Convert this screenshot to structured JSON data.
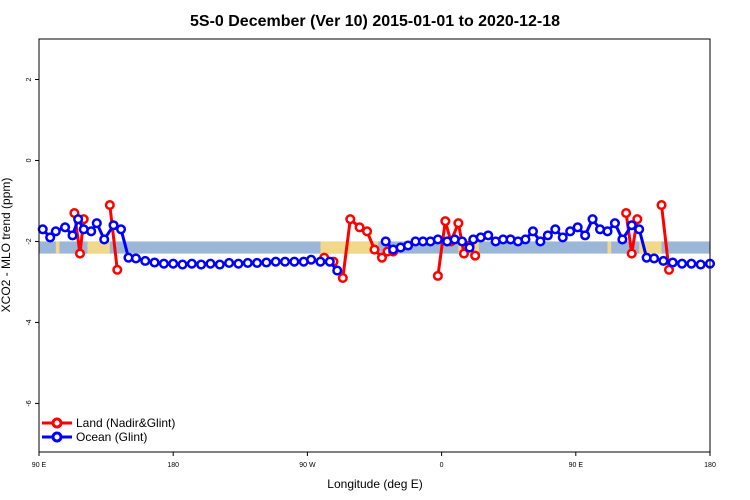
{
  "chart_data": {
    "type": "line",
    "title": "5S-0 December (Ver 10)   2015-01-01 to 2020-12-18",
    "xlabel": "Longitude (deg E)",
    "ylabel": "XCO2 - MLO trend (ppm)",
    "xlim": [
      90,
      450
    ],
    "ylim": [
      -7.2,
      3.0
    ],
    "x_ticks": [
      {
        "value": 90,
        "label": "90 E"
      },
      {
        "value": 180,
        "label": "180"
      },
      {
        "value": 270,
        "label": "90 W"
      },
      {
        "value": 360,
        "label": "0"
      },
      {
        "value": 450,
        "label": "90 E"
      },
      {
        "value": 540,
        "label": "180"
      }
    ],
    "x_tick_display_positions": [
      90,
      162,
      234,
      306,
      378,
      450
    ],
    "y_ticks": [
      2,
      0,
      -2,
      -4,
      -6
    ],
    "reference_band": {
      "y_low": -2.3,
      "y_high": -2.0,
      "color": "#9cb6d8",
      "land_color": "#f2d88a"
    },
    "land_band_x": [
      [
        99,
        101
      ],
      [
        116,
        128
      ],
      [
        241,
        272
      ],
      [
        315,
        326
      ],
      [
        395,
        397
      ],
      [
        412,
        424
      ]
    ],
    "series": [
      {
        "name": "Land (Nadir&Glint)",
        "color": "#ff0000",
        "points": [
          [
            109,
            -1.3
          ],
          [
            112,
            -2.3
          ],
          [
            114,
            -1.45
          ],
          [
            128,
            -1.1
          ],
          [
            132,
            -2.7
          ],
          [
            243,
            -2.4
          ],
          [
            248,
            -2.5
          ],
          [
            253,
            -2.9
          ],
          [
            257,
            -1.45
          ],
          [
            262,
            -1.65
          ],
          [
            266,
            -1.75
          ],
          [
            270,
            -2.2
          ],
          [
            274,
            -2.4
          ],
          [
            277,
            -2.25
          ],
          [
            280,
            -2.25
          ],
          [
            304,
            -2.85
          ],
          [
            308,
            -1.5
          ],
          [
            311,
            -2.0
          ],
          [
            315,
            -1.55
          ],
          [
            318,
            -2.3
          ],
          [
            321,
            -2.1
          ],
          [
            324,
            -2.35
          ],
          [
            405,
            -1.3
          ],
          [
            408,
            -2.3
          ],
          [
            411,
            -1.45
          ],
          [
            424,
            -1.1
          ],
          [
            428,
            -2.7
          ]
        ]
      },
      {
        "name": "Ocean (Glint)",
        "color": "#0000ff",
        "points": [
          [
            92,
            -1.7
          ],
          [
            96,
            -1.9
          ],
          [
            99,
            -1.75
          ],
          [
            104,
            -1.65
          ],
          [
            108,
            -1.85
          ],
          [
            111,
            -1.45
          ],
          [
            114,
            -1.7
          ],
          [
            118,
            -1.75
          ],
          [
            121,
            -1.55
          ],
          [
            125,
            -1.95
          ],
          [
            130,
            -1.6
          ],
          [
            134,
            -1.7
          ],
          [
            138,
            -2.4
          ],
          [
            142,
            -2.42
          ],
          [
            147,
            -2.48
          ],
          [
            152,
            -2.52
          ],
          [
            157,
            -2.55
          ],
          [
            162,
            -2.55
          ],
          [
            167,
            -2.57
          ],
          [
            172,
            -2.55
          ],
          [
            177,
            -2.57
          ],
          [
            182,
            -2.55
          ],
          [
            187,
            -2.57
          ],
          [
            192,
            -2.53
          ],
          [
            197,
            -2.55
          ],
          [
            202,
            -2.53
          ],
          [
            207,
            -2.53
          ],
          [
            212,
            -2.52
          ],
          [
            217,
            -2.5
          ],
          [
            222,
            -2.5
          ],
          [
            227,
            -2.5
          ],
          [
            232,
            -2.5
          ],
          [
            236,
            -2.45
          ],
          [
            241,
            -2.5
          ],
          [
            246,
            -2.5
          ],
          [
            250,
            -2.72
          ],
          [
            276,
            -2.0
          ],
          [
            280,
            -2.2
          ],
          [
            284,
            -2.15
          ],
          [
            288,
            -2.1
          ],
          [
            292,
            -2.0
          ],
          [
            296,
            -2.0
          ],
          [
            300,
            -2.0
          ],
          [
            304,
            -1.95
          ],
          [
            309,
            -2.0
          ],
          [
            313,
            -1.95
          ],
          [
            317,
            -2.0
          ],
          [
            321,
            -2.15
          ],
          [
            323,
            -1.95
          ],
          [
            327,
            -1.9
          ],
          [
            331,
            -1.85
          ],
          [
            335,
            -2.0
          ],
          [
            339,
            -1.95
          ],
          [
            343,
            -1.95
          ],
          [
            347,
            -2.0
          ],
          [
            351,
            -1.95
          ],
          [
            355,
            -1.75
          ],
          [
            359,
            -2.0
          ],
          [
            363,
            -1.85
          ],
          [
            367,
            -1.7
          ],
          [
            371,
            -1.9
          ],
          [
            375,
            -1.75
          ],
          [
            379,
            -1.65
          ],
          [
            383,
            -1.85
          ],
          [
            387,
            -1.45
          ],
          [
            391,
            -1.7
          ],
          [
            395,
            -1.75
          ],
          [
            399,
            -1.55
          ],
          [
            403,
            -1.95
          ],
          [
            408,
            -1.6
          ],
          [
            412,
            -1.7
          ],
          [
            416,
            -2.4
          ],
          [
            420,
            -2.42
          ],
          [
            425,
            -2.48
          ],
          [
            430,
            -2.52
          ],
          [
            435,
            -2.55
          ],
          [
            440,
            -2.55
          ],
          [
            445,
            -2.57
          ],
          [
            450,
            -2.55
          ]
        ]
      }
    ],
    "legend": {
      "placement": "bottom-left"
    },
    "grid": false
  }
}
